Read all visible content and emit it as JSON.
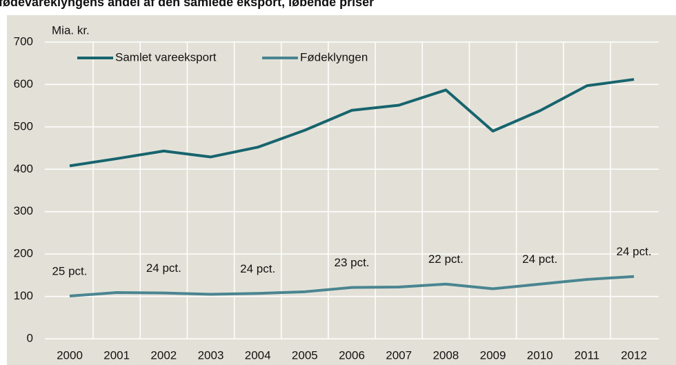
{
  "chart_data": {
    "type": "line",
    "title": "fødevareklyngens andel af den samlede eksport, løbende priser",
    "y_label": "Mia. kr.",
    "categories": [
      "2000",
      "2001",
      "2002",
      "2003",
      "2004",
      "2005",
      "2006",
      "2007",
      "2008",
      "2009",
      "2010",
      "2011",
      "2012"
    ],
    "series": [
      {
        "name": "Samlet vareeksport",
        "color": "#17646e",
        "values": [
          408,
          425,
          443,
          429,
          452,
          492,
          539,
          551,
          587,
          490,
          538,
          597,
          612
        ]
      },
      {
        "name": "Fødeklyngen",
        "color": "#4a8591",
        "values": [
          101,
          109,
          108,
          105,
          107,
          111,
          121,
          122,
          129,
          118,
          129,
          140,
          147
        ]
      }
    ],
    "annotations": [
      {
        "x": "2000",
        "text": "25 pct."
      },
      {
        "x": "2002",
        "text": "24 pct."
      },
      {
        "x": "2004",
        "text": "24 pct."
      },
      {
        "x": "2006",
        "text": "23 pct."
      },
      {
        "x": "2008",
        "text": "22 pct."
      },
      {
        "x": "2010",
        "text": "24 pct."
      },
      {
        "x": "2012",
        "text": "24 pct."
      }
    ],
    "ylim": [
      0,
      700
    ],
    "yticks": [
      0,
      100,
      200,
      300,
      400,
      500,
      600,
      700
    ],
    "grid": true
  }
}
